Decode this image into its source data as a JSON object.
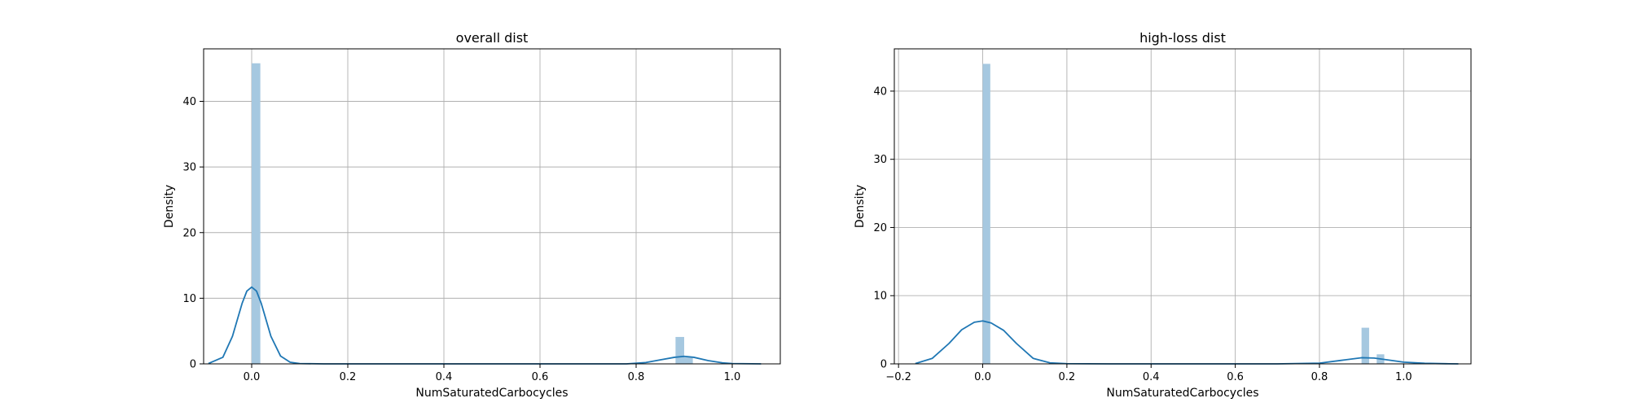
{
  "chart_data": [
    {
      "type": "bar",
      "title": "overall dist",
      "xlabel": "NumSaturatedCarbocycles",
      "ylabel": "Density",
      "xlim": [
        -0.1,
        1.1
      ],
      "ylim": [
        0,
        48
      ],
      "xticks": [
        0.0,
        0.2,
        0.4,
        0.6,
        0.8,
        1.0
      ],
      "xtick_labels": [
        "0.0",
        "0.2",
        "0.4",
        "0.6",
        "0.8",
        "1.0"
      ],
      "yticks": [
        0,
        10,
        20,
        30,
        40
      ],
      "ytick_labels": [
        "0",
        "10",
        "20",
        "30",
        "40"
      ],
      "grid": true,
      "bar_color": "#a6c8e0",
      "line_color": "#1f77b4",
      "histogram": [
        {
          "x0": 0.0,
          "x1": 0.018,
          "density": 45.8
        },
        {
          "x0": 0.882,
          "x1": 0.9,
          "density": 4.1
        },
        {
          "x0": 0.9,
          "x1": 0.918,
          "density": 1.0
        }
      ],
      "kde": {
        "x": [
          -0.09,
          -0.06,
          -0.04,
          -0.02,
          -0.01,
          0.0,
          0.01,
          0.02,
          0.04,
          0.06,
          0.08,
          0.1,
          0.15,
          0.3,
          0.6,
          0.78,
          0.82,
          0.85,
          0.88,
          0.9,
          0.92,
          0.95,
          0.98,
          1.0,
          1.06
        ],
        "y": [
          0.05,
          1.0,
          4.2,
          9.2,
          11.1,
          11.7,
          11.1,
          9.2,
          4.2,
          1.2,
          0.25,
          0.05,
          0.0,
          0.0,
          0.0,
          0.0,
          0.2,
          0.6,
          1.0,
          1.15,
          1.0,
          0.5,
          0.15,
          0.05,
          0.0
        ]
      }
    },
    {
      "type": "bar",
      "title": "high-loss dist",
      "xlabel": "NumSaturatedCarbocycles",
      "ylabel": "Density",
      "xlim": [
        -0.21,
        1.16
      ],
      "ylim": [
        0,
        46.2
      ],
      "xticks": [
        -0.2,
        0.0,
        0.2,
        0.4,
        0.6,
        0.8,
        1.0
      ],
      "xtick_labels": [
        "−0.2",
        "0.0",
        "0.2",
        "0.4",
        "0.6",
        "0.8",
        "1.0"
      ],
      "yticks": [
        0,
        10,
        20,
        30,
        40
      ],
      "ytick_labels": [
        "0",
        "10",
        "20",
        "30",
        "40"
      ],
      "grid": true,
      "bar_color": "#a6c8e0",
      "line_color": "#1f77b4",
      "histogram": [
        {
          "x0": 0.0,
          "x1": 0.018,
          "density": 44.0
        },
        {
          "x0": 0.9,
          "x1": 0.918,
          "density": 5.3
        },
        {
          "x0": 0.936,
          "x1": 0.954,
          "density": 1.4
        }
      ],
      "kde": {
        "x": [
          -0.16,
          -0.12,
          -0.08,
          -0.05,
          -0.02,
          0.0,
          0.02,
          0.05,
          0.08,
          0.12,
          0.16,
          0.2,
          0.3,
          0.5,
          0.7,
          0.8,
          0.85,
          0.9,
          0.93,
          0.96,
          1.0,
          1.05,
          1.1,
          1.13
        ],
        "y": [
          0.05,
          0.8,
          3.0,
          5.0,
          6.1,
          6.3,
          6.0,
          4.9,
          3.0,
          0.8,
          0.15,
          0.03,
          0.0,
          0.0,
          0.0,
          0.1,
          0.5,
          0.9,
          0.85,
          0.6,
          0.25,
          0.08,
          0.02,
          0.0
        ]
      }
    }
  ]
}
